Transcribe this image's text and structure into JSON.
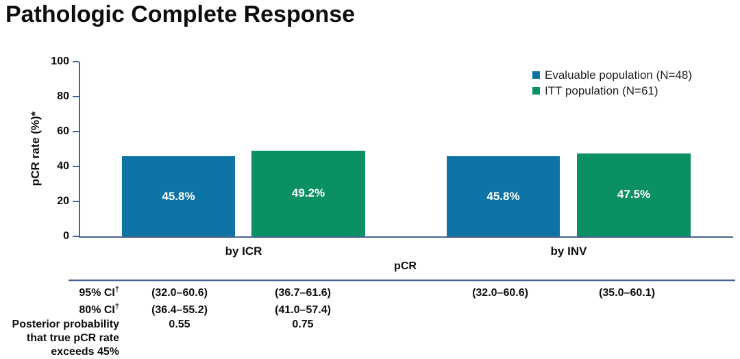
{
  "chart_data": {
    "type": "bar",
    "title": "Pathologic Complete Response",
    "ylabel": "pCR rate (%)*",
    "xlabel": "pCR",
    "ylim": [
      0,
      100
    ],
    "yticks": [
      0,
      20,
      40,
      60,
      80,
      100
    ],
    "grid": false,
    "legend_position": "top-right",
    "categories": [
      "by ICR",
      "by INV"
    ],
    "series": [
      {
        "name": "Evaluable population (N=48)",
        "color": "#0e73a5",
        "values": [
          45.8,
          45.8
        ],
        "labels": [
          "45.8%",
          "45.8%"
        ]
      },
      {
        "name": "ITT population (N=61)",
        "color": "#0a9064",
        "values": [
          49.2,
          47.5
        ],
        "labels": [
          "49.2%",
          "47.5%"
        ]
      }
    ],
    "axis_color": "#47628f",
    "stats_table": {
      "rows": [
        {
          "label": "95% CI",
          "sup": "†",
          "values": [
            "(32.0–60.6)",
            "(36.7–61.6)",
            "(32.0–60.6)",
            "(35.0–60.1)"
          ]
        },
        {
          "label": "80% CI",
          "sup": "†",
          "values": [
            "(36.4–55.2)",
            "(41.0–57.4)",
            "",
            ""
          ]
        },
        {
          "label": "Posterior probability that true pCR rate exceeds 45%",
          "sup": "",
          "values": [
            "0.55",
            "0.75",
            "",
            ""
          ]
        }
      ]
    }
  }
}
